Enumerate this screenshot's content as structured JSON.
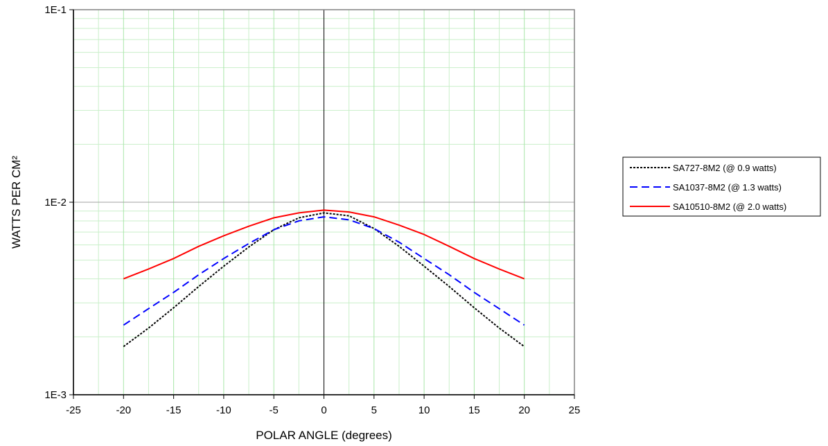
{
  "chart_data": {
    "type": "line",
    "title": "",
    "xlabel": "POLAR ANGLE (degrees)",
    "ylabel": "WATTS PER CM²",
    "x_scale": "linear",
    "y_scale": "log",
    "xlim": [
      -25,
      25
    ],
    "ylim": [
      0.001,
      0.1
    ],
    "x_ticks": [
      -25,
      -20,
      -15,
      -10,
      -5,
      0,
      5,
      10,
      15,
      20,
      25
    ],
    "x_tick_labels": [
      "-25",
      "-20",
      "-15",
      "-10",
      "-5",
      "0",
      "5",
      "10",
      "15",
      "20",
      "25"
    ],
    "y_ticks": [
      0.001,
      0.01,
      0.1
    ],
    "y_tick_labels": [
      "1E-3",
      "1E-2",
      "1E-1"
    ],
    "grid": true,
    "legend_position": "right",
    "x": [
      -20,
      -17.5,
      -15,
      -12.5,
      -10,
      -7.5,
      -5,
      -2.5,
      0,
      2.5,
      5,
      7.5,
      10,
      12.5,
      15,
      17.5,
      20
    ],
    "series": [
      {
        "name": "SA727-8M2 (@ 0.9 watts)",
        "color": "#000000",
        "dash": "dotted",
        "values": [
          0.00178,
          0.00222,
          0.00283,
          0.00365,
          0.00465,
          0.00585,
          0.0072,
          0.0083,
          0.0088,
          0.0085,
          0.0073,
          0.0059,
          0.00465,
          0.00365,
          0.00283,
          0.00222,
          0.00178
        ]
      },
      {
        "name": "SA1037-8M2 (@ 1.3 watts)",
        "color": "#0000ff",
        "dash": "dashed",
        "values": [
          0.0023,
          0.0028,
          0.0034,
          0.0042,
          0.0051,
          0.0061,
          0.0072,
          0.008,
          0.0084,
          0.0081,
          0.0073,
          0.0062,
          0.0051,
          0.0042,
          0.0034,
          0.0028,
          0.0023
        ]
      },
      {
        "name": "SA10510-8M2 (@ 2.0 watts)",
        "color": "#ff0000",
        "dash": "solid",
        "values": [
          0.004,
          0.0045,
          0.0051,
          0.0059,
          0.0067,
          0.0075,
          0.0083,
          0.0088,
          0.0091,
          0.0089,
          0.0084,
          0.0076,
          0.0068,
          0.0059,
          0.0051,
          0.0045,
          0.004
        ]
      }
    ]
  }
}
